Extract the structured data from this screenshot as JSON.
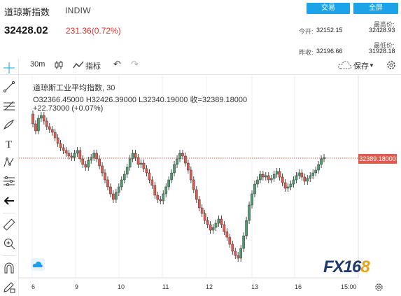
{
  "header": {
    "title": "道琼斯指数",
    "symbol": "INDIW",
    "trade_button": "交易",
    "fullscreen_button": "全屏",
    "price": "32428.02",
    "change": "231.36(0.72%)"
  },
  "stats": {
    "open_label": "今开:",
    "open_value": "32152.15",
    "high_label": "最高价:",
    "high_value": "32428.93",
    "prev_close_label": "昨收:",
    "prev_close_value": "32196.66",
    "low_label": "最低价:",
    "low_value": "31928.18"
  },
  "toolbar": {
    "interval": "30m",
    "indicator_label": "指标",
    "save_label": "保存"
  },
  "legend": {
    "title": "道琼斯工业平均指数, 30",
    "ohlc": "O32366.45000  H32426.39000  L32340.19000  收=32389.18000",
    "change": "+22.73000 (+0.07%)"
  },
  "price_tag": "32389.18000",
  "x_ticks": [
    "6",
    "9",
    "10",
    "11",
    "12",
    "13",
    "16",
    "15:00"
  ],
  "logo": {
    "part1": "FX16",
    "part2": "8"
  },
  "colors": {
    "up": "#4e9b6f",
    "down": "#e05a4f",
    "accent": "#1aa3e8"
  },
  "icons": [
    "crosshair-icon",
    "trendline-icon",
    "fib-icon",
    "brush-icon",
    "text-icon",
    "pattern-icon",
    "measure-icon",
    "back-arrow-icon",
    "ruler-icon",
    "zoom-icon",
    "magnet-icon",
    "lock-pencil-icon",
    "cloud-icon",
    "gear-icon",
    "undo-icon",
    "redo-icon",
    "candle-icon",
    "indicator-icon"
  ]
}
